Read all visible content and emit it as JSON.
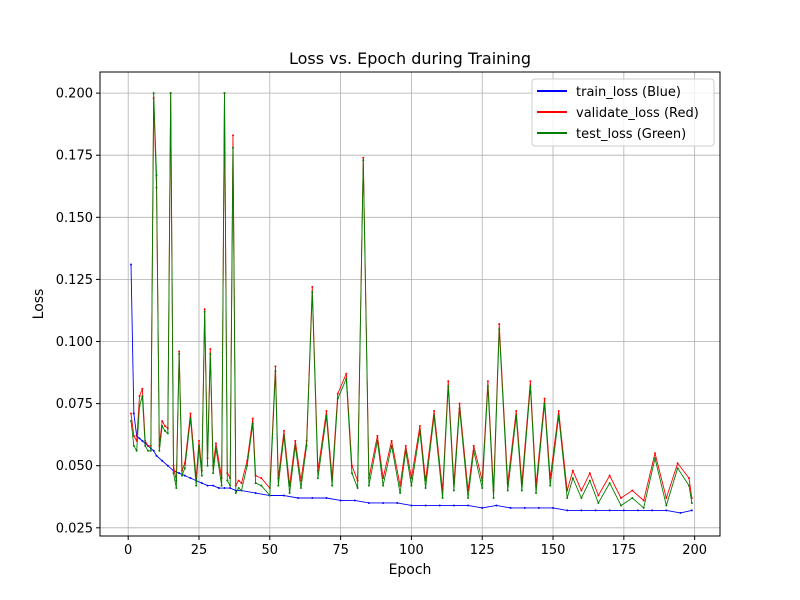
{
  "chart_data": {
    "type": "line",
    "title": "Loss vs. Epoch during Training",
    "xlabel": "Epoch",
    "ylabel": "Loss",
    "xlim": [
      -9.95,
      208.95
    ],
    "ylim": [
      0.0217,
      0.2085
    ],
    "xticks": [
      0,
      25,
      50,
      75,
      100,
      125,
      150,
      175,
      200
    ],
    "yticks": [
      0.025,
      0.05,
      0.075,
      0.1,
      0.125,
      0.15,
      0.175,
      0.2
    ],
    "ytick_labels": [
      "0.025",
      "0.050",
      "0.075",
      "0.100",
      "0.125",
      "0.150",
      "0.175",
      "0.200"
    ],
    "grid": true,
    "legend_position": "top-right",
    "series": [
      {
        "name": "train_loss (Blue)",
        "color": "#0000ff",
        "x": [
          1,
          2,
          3,
          4,
          5,
          6,
          7,
          8,
          9,
          10,
          12,
          14,
          16,
          18,
          20,
          22,
          24,
          26,
          28,
          30,
          32,
          34,
          36,
          38,
          40,
          45,
          50,
          55,
          60,
          65,
          70,
          75,
          80,
          85,
          90,
          95,
          100,
          105,
          110,
          115,
          120,
          125,
          130,
          135,
          140,
          145,
          150,
          155,
          160,
          165,
          170,
          175,
          180,
          185,
          190,
          195,
          199
        ],
        "values": [
          0.131,
          0.071,
          0.062,
          0.061,
          0.06,
          0.059,
          0.058,
          0.057,
          0.056,
          0.054,
          0.052,
          0.05,
          0.048,
          0.047,
          0.046,
          0.045,
          0.044,
          0.043,
          0.042,
          0.042,
          0.041,
          0.041,
          0.041,
          0.04,
          0.04,
          0.039,
          0.038,
          0.038,
          0.037,
          0.037,
          0.037,
          0.036,
          0.036,
          0.035,
          0.035,
          0.035,
          0.034,
          0.034,
          0.034,
          0.034,
          0.034,
          0.033,
          0.034,
          0.033,
          0.033,
          0.033,
          0.033,
          0.032,
          0.032,
          0.032,
          0.032,
          0.032,
          0.032,
          0.032,
          0.032,
          0.031,
          0.032
        ]
      },
      {
        "name": "validate_loss (Red)",
        "color": "#ff0000",
        "x": [
          1,
          2,
          3,
          4,
          5,
          6,
          7,
          8,
          9,
          10,
          11,
          12,
          13,
          14,
          15,
          16,
          17,
          18,
          19,
          20,
          22,
          24,
          25,
          26,
          27,
          28,
          29,
          30,
          31,
          33,
          34,
          35,
          36,
          37,
          38,
          39,
          40,
          42,
          44,
          45,
          47,
          50,
          52,
          53,
          55,
          57,
          59,
          61,
          63,
          65,
          67,
          70,
          72,
          74,
          77,
          79,
          81,
          83,
          85,
          88,
          90,
          93,
          96,
          98,
          100,
          103,
          105,
          108,
          111,
          113,
          115,
          117,
          120,
          122,
          125,
          127,
          129,
          131,
          134,
          137,
          139,
          142,
          144,
          147,
          149,
          152,
          155,
          157,
          160,
          163,
          166,
          170,
          174,
          178,
          182,
          186,
          190,
          194,
          198,
          199
        ],
        "values": [
          0.071,
          0.062,
          0.06,
          0.078,
          0.081,
          0.06,
          0.058,
          0.058,
          0.198,
          0.162,
          0.058,
          0.068,
          0.066,
          0.065,
          0.2,
          0.05,
          0.044,
          0.096,
          0.048,
          0.051,
          0.071,
          0.045,
          0.06,
          0.048,
          0.113,
          0.053,
          0.097,
          0.05,
          0.059,
          0.045,
          0.2,
          0.047,
          0.045,
          0.183,
          0.042,
          0.044,
          0.043,
          0.052,
          0.069,
          0.046,
          0.045,
          0.041,
          0.09,
          0.045,
          0.064,
          0.042,
          0.06,
          0.044,
          0.06,
          0.122,
          0.048,
          0.072,
          0.045,
          0.079,
          0.087,
          0.05,
          0.044,
          0.174,
          0.045,
          0.062,
          0.045,
          0.06,
          0.042,
          0.058,
          0.045,
          0.066,
          0.044,
          0.072,
          0.04,
          0.084,
          0.043,
          0.075,
          0.04,
          0.058,
          0.044,
          0.084,
          0.04,
          0.107,
          0.043,
          0.072,
          0.043,
          0.084,
          0.042,
          0.077,
          0.045,
          0.072,
          0.04,
          0.048,
          0.04,
          0.047,
          0.038,
          0.046,
          0.037,
          0.04,
          0.036,
          0.055,
          0.037,
          0.051,
          0.045,
          0.037
        ]
      },
      {
        "name": "test_loss (Green)",
        "color": "#008000",
        "x": [
          1,
          2,
          3,
          4,
          5,
          6,
          7,
          8,
          9,
          10,
          11,
          12,
          13,
          14,
          15,
          16,
          17,
          18,
          19,
          20,
          22,
          24,
          25,
          26,
          27,
          28,
          29,
          30,
          31,
          33,
          34,
          35,
          36,
          37,
          38,
          39,
          40,
          42,
          44,
          45,
          47,
          50,
          52,
          53,
          55,
          57,
          59,
          61,
          63,
          65,
          67,
          70,
          72,
          74,
          77,
          79,
          81,
          83,
          85,
          88,
          90,
          93,
          96,
          98,
          100,
          103,
          105,
          108,
          111,
          113,
          115,
          117,
          120,
          122,
          125,
          127,
          129,
          131,
          134,
          137,
          139,
          142,
          144,
          147,
          149,
          152,
          155,
          157,
          160,
          163,
          166,
          170,
          174,
          178,
          182,
          186,
          190,
          194,
          198,
          199
        ],
        "values": [
          0.068,
          0.058,
          0.056,
          0.074,
          0.078,
          0.058,
          0.056,
          0.056,
          0.2,
          0.167,
          0.056,
          0.066,
          0.064,
          0.063,
          0.2,
          0.047,
          0.041,
          0.095,
          0.046,
          0.049,
          0.069,
          0.042,
          0.058,
          0.046,
          0.112,
          0.05,
          0.095,
          0.047,
          0.057,
          0.042,
          0.2,
          0.044,
          0.042,
          0.178,
          0.039,
          0.041,
          0.04,
          0.05,
          0.067,
          0.043,
          0.042,
          0.038,
          0.088,
          0.042,
          0.062,
          0.039,
          0.058,
          0.041,
          0.058,
          0.12,
          0.045,
          0.07,
          0.042,
          0.077,
          0.085,
          0.047,
          0.041,
          0.173,
          0.042,
          0.06,
          0.042,
          0.058,
          0.039,
          0.056,
          0.042,
          0.064,
          0.041,
          0.07,
          0.037,
          0.082,
          0.04,
          0.073,
          0.037,
          0.056,
          0.041,
          0.082,
          0.037,
          0.105,
          0.04,
          0.07,
          0.04,
          0.082,
          0.039,
          0.075,
          0.042,
          0.07,
          0.037,
          0.045,
          0.037,
          0.044,
          0.035,
          0.043,
          0.034,
          0.037,
          0.033,
          0.053,
          0.034,
          0.049,
          0.042,
          0.035
        ]
      }
    ]
  }
}
